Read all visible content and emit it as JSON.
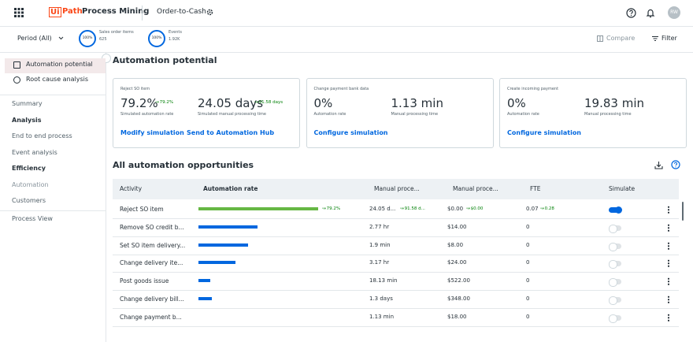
{
  "header": {
    "logo_box": "Ui",
    "logo_text": "Path",
    "product": "Process Mining",
    "app": "Order-to-Cash",
    "user": "RW"
  },
  "filterbar": {
    "period": "Period (All)",
    "kpis": [
      {
        "badge": "100%",
        "label": "Sales order items",
        "value": "625"
      },
      {
        "badge": "100%",
        "label": "Events",
        "value": "1.92K"
      }
    ],
    "compare": "Compare",
    "filter": "Filter"
  },
  "sidebar": {
    "top": [
      "Automation potential",
      "Root cause analysis"
    ],
    "items": [
      {
        "label": "Summary",
        "kind": "link"
      },
      {
        "label": "Analysis",
        "kind": "heading"
      },
      {
        "label": "End to end process",
        "kind": "link"
      },
      {
        "label": "Event analysis",
        "kind": "link"
      },
      {
        "label": "Efficiency",
        "kind": "heading"
      },
      {
        "label": "Automation",
        "kind": "muted"
      },
      {
        "label": "Customers",
        "kind": "link"
      }
    ],
    "bottom": "Process View"
  },
  "page_title": "Automation potential",
  "cards": [
    {
      "title": "Reject SO item",
      "metrics": [
        {
          "value": "79.2%",
          "delta": "79.2%",
          "label": "Simulated automation rate"
        },
        {
          "value": "24.05 days",
          "delta": "91.58 days",
          "label": "Simulated manual processing time"
        }
      ],
      "links": [
        "Modify simulation",
        "Send to Automation Hub"
      ]
    },
    {
      "title": "Change payment bank data",
      "metrics": [
        {
          "value": "0%",
          "label": "Automation rate"
        },
        {
          "value": "1.13 min",
          "label": "Manual processing time"
        }
      ],
      "links": [
        "Configure simulation"
      ]
    },
    {
      "title": "Create incoming payment",
      "metrics": [
        {
          "value": "0%",
          "label": "Automation rate"
        },
        {
          "value": "19.83 min",
          "label": "Manual processing time"
        }
      ],
      "links": [
        "Configure simulation"
      ]
    }
  ],
  "table": {
    "title": "All automation opportunities",
    "columns": [
      "Activity",
      "Automation rate",
      "Manual proce...",
      "Manual proce...",
      "FTE",
      "Simulate"
    ],
    "rows": [
      {
        "activity": "Reject SO item",
        "rate": 79.2,
        "rate_label": "79.2%",
        "time": "24.05 d...",
        "time_delta": "91.58 d...",
        "cost": "$0.00",
        "cost_delta": "$0.00",
        "fte": "0.07",
        "fte_delta": "0.28",
        "simulate": true
      },
      {
        "activity": "Remove SO credit b...",
        "rate": 39,
        "time": "2.77 hr",
        "cost": "$14.00",
        "fte": "0",
        "simulate": false
      },
      {
        "activity": "Set SO item delivery...",
        "rate": 33,
        "time": "1.9 min",
        "cost": "$8.00",
        "fte": "0",
        "simulate": false
      },
      {
        "activity": "Change delivery ite...",
        "rate": 24.5,
        "time": "3.17 hr",
        "cost": "$24.00",
        "fte": "0",
        "simulate": false
      },
      {
        "activity": "Post goods issue",
        "rate": 8,
        "time": "18.13 min",
        "cost": "$522.00",
        "fte": "0",
        "simulate": false
      },
      {
        "activity": "Change delivery bill...",
        "rate": 9,
        "time": "1.3 days",
        "cost": "$348.00",
        "fte": "0",
        "simulate": false
      },
      {
        "activity": "Change payment b...",
        "rate": 0,
        "time": "1.13 min",
        "cost": "$18.00",
        "fte": "0",
        "simulate": false
      }
    ]
  }
}
